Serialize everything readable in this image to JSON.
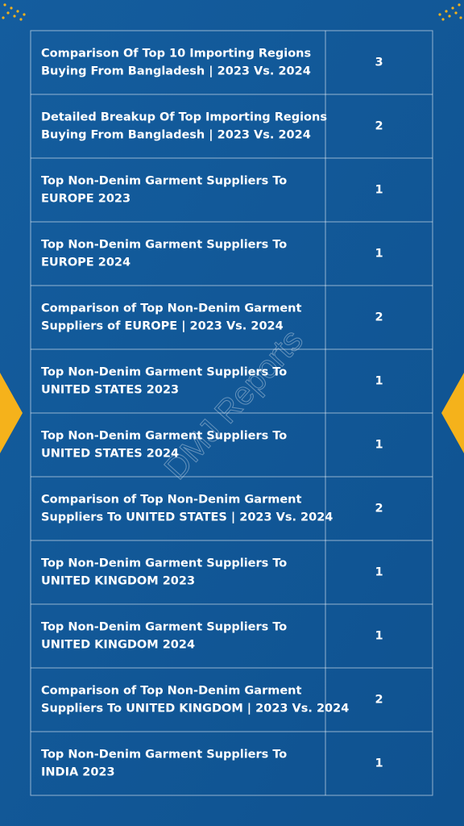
{
  "watermark": "DMJ Reports",
  "table": {
    "rows": [
      {
        "lines": [
          "Comparison Of Top 10 Importing Regions",
          "Buying From Bangladesh | 2023 Vs. 2024"
        ],
        "count": 3
      },
      {
        "lines": [
          "Detailed Breakup Of Top Importing Regions",
          "Buying From Bangladesh  | 2023 Vs. 2024"
        ],
        "count": 2
      },
      {
        "lines": [
          "Top Non-Denim Garment Suppliers To",
          "EUROPE  2023"
        ],
        "count": 1
      },
      {
        "lines": [
          "Top Non-Denim Garment Suppliers To",
          "EUROPE  2024"
        ],
        "count": 1
      },
      {
        "lines": [
          "Comparison of Top Non-Denim Garment",
          "Suppliers of EUROPE  | 2023 Vs. 2024"
        ],
        "count": 2
      },
      {
        "lines": [
          "Top Non-Denim Garment Suppliers To",
          "UNITED STATES 2023"
        ],
        "count": 1
      },
      {
        "lines": [
          "Top Non-Denim Garment Suppliers To",
          "UNITED STATES 2024"
        ],
        "count": 1
      },
      {
        "lines": [
          "Comparison of Top Non-Denim Garment",
          "Suppliers To UNITED STATES   | 2023 Vs. 2024"
        ],
        "count": 2
      },
      {
        "lines": [
          "Top Non-Denim Garment Suppliers To",
          "UNITED KINGDOM 2023"
        ],
        "count": 1
      },
      {
        "lines": [
          "Top Non-Denim Garment Suppliers To",
          "UNITED KINGDOM 2024"
        ],
        "count": 1
      },
      {
        "lines": [
          "Comparison of Top Non-Denim Garment",
          "Suppliers To UNITED KINGDOM  | 2023 Vs. 2024"
        ],
        "count": 2
      },
      {
        "lines": [
          "Top Non-Denim Garment Suppliers To",
          "INDIA  2023"
        ],
        "count": 1
      }
    ]
  }
}
